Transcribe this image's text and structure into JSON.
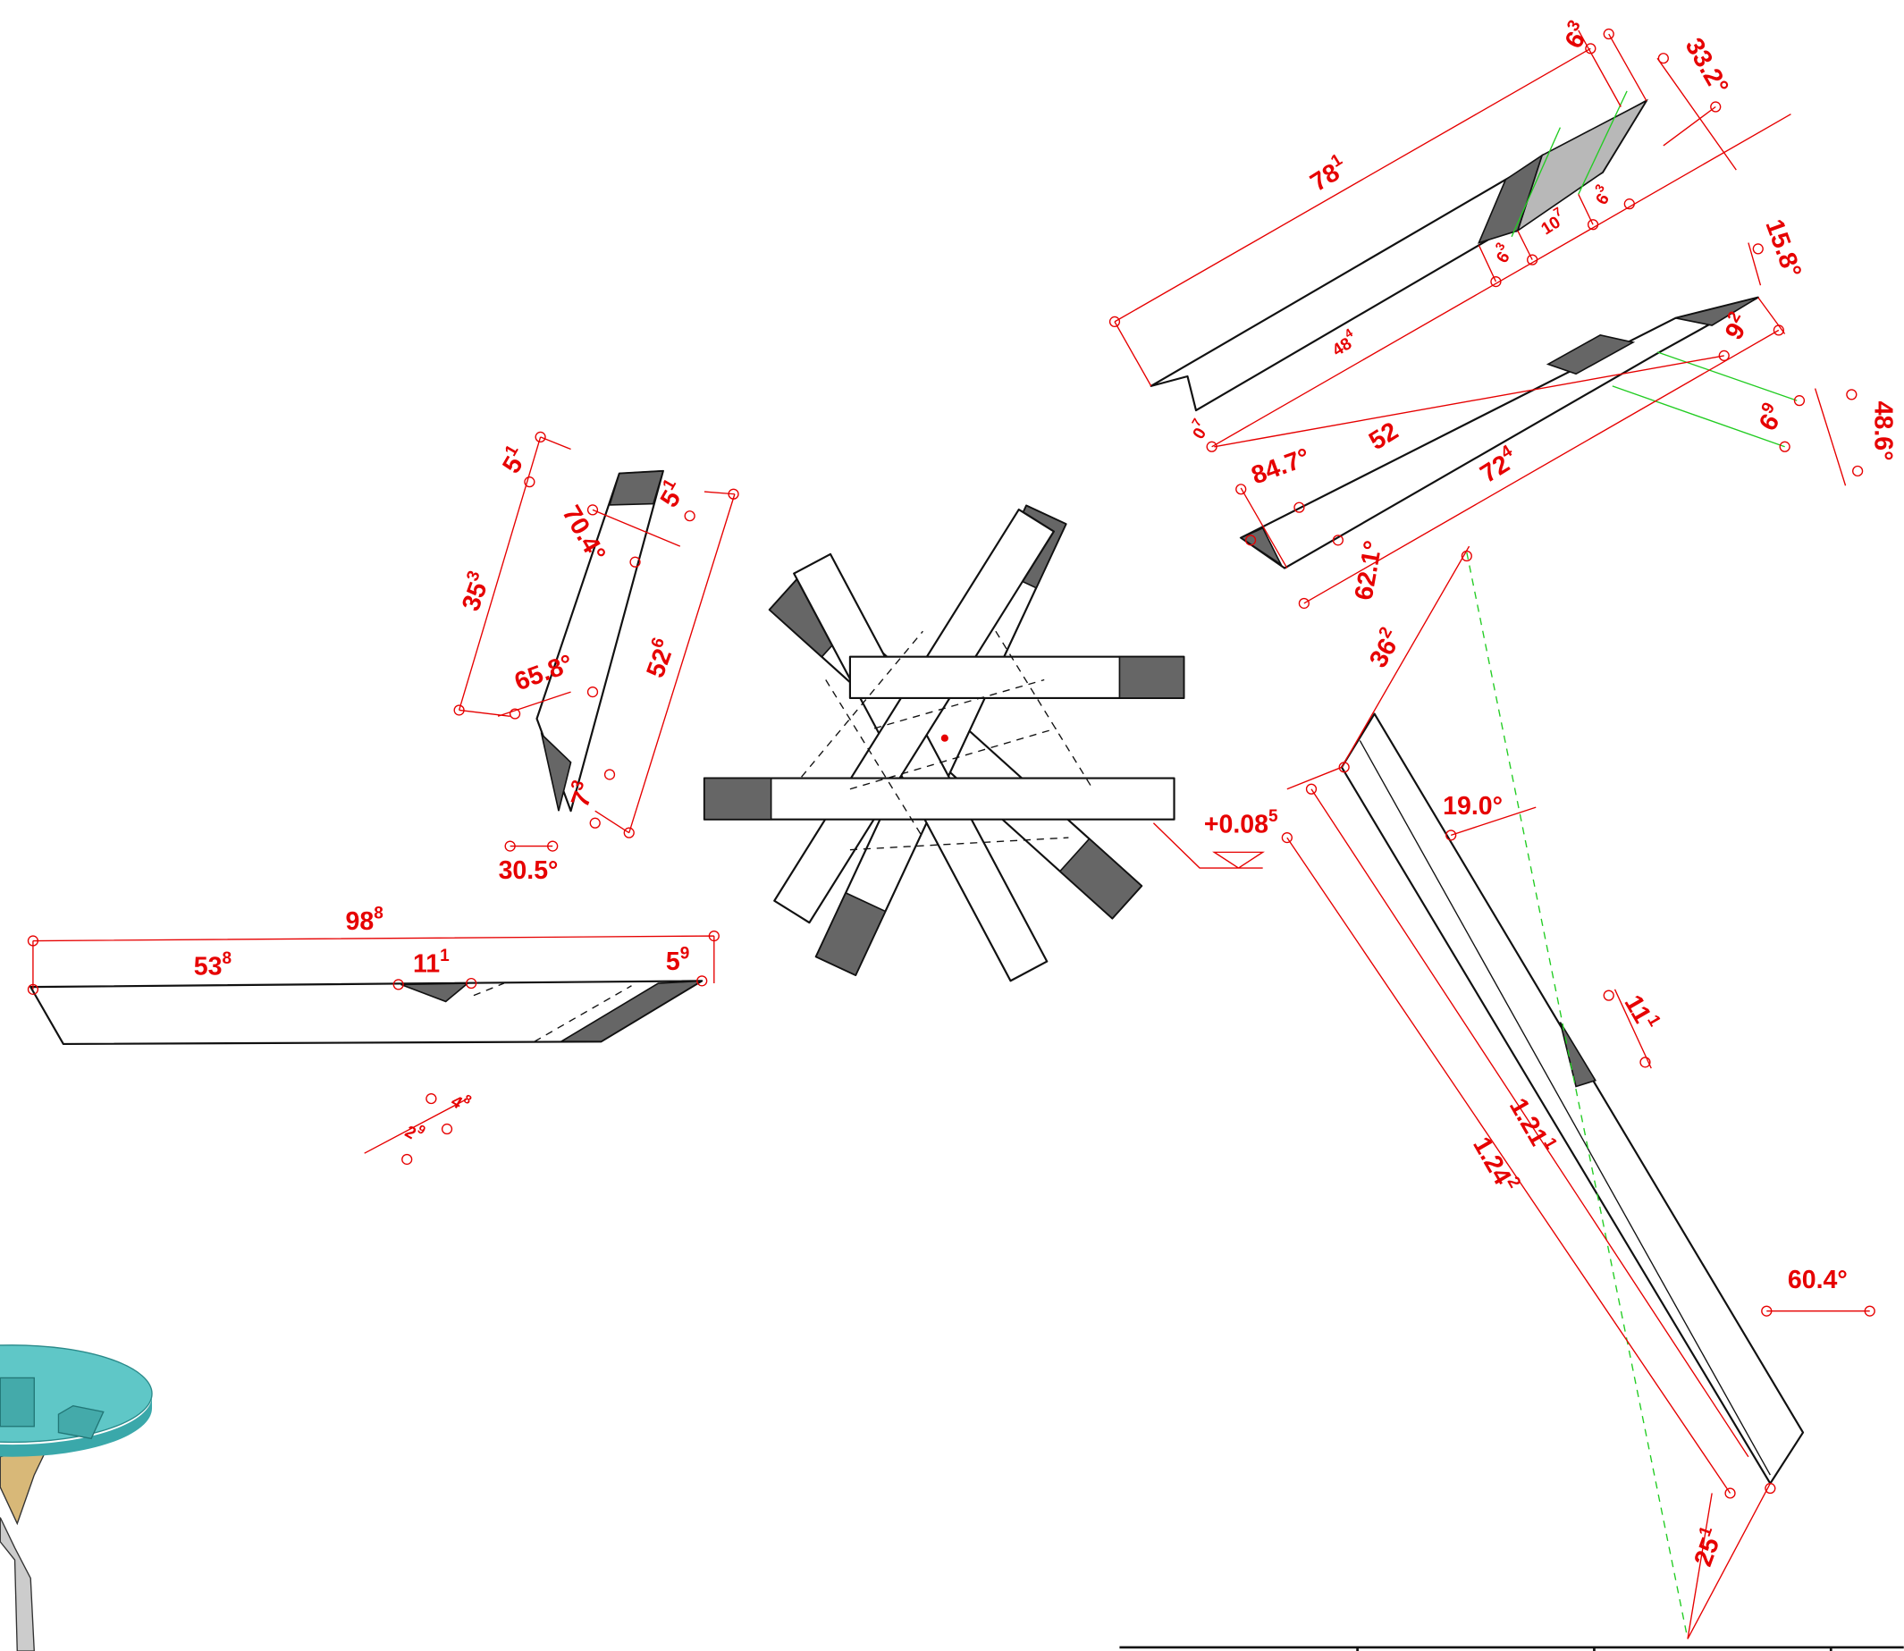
{
  "labels": [
    {
      "text": "6",
      "sup": "3"
    },
    {
      "text": "33.2°"
    },
    {
      "text": "78",
      "sup": "1"
    },
    {
      "text": "10",
      "sup": "7"
    },
    {
      "text": "6",
      "sup": "3"
    },
    {
      "text": "6",
      "sup": "3"
    },
    {
      "text": "48",
      "sup": "4"
    },
    {
      "text": "15.8°"
    },
    {
      "text": "9",
      "sup": "2"
    },
    {
      "text": "52"
    },
    {
      "text": "6",
      "sup": "9"
    },
    {
      "text": "48.6°"
    },
    {
      "text": "84.7°"
    },
    {
      "text": "72",
      "sup": "4"
    },
    {
      "text": "0",
      "sup": "7"
    },
    {
      "text": "62.1°"
    },
    {
      "text": "5",
      "sup": "1"
    },
    {
      "text": "5",
      "sup": "1"
    },
    {
      "text": "70.4°"
    },
    {
      "text": "35",
      "sup": "3"
    },
    {
      "text": "52",
      "sup": "6"
    },
    {
      "text": "65.8°"
    },
    {
      "text": "7",
      "sup": "3"
    },
    {
      "text": "30.5°"
    },
    {
      "text": "98",
      "sup": "8"
    },
    {
      "text": "53",
      "sup": "8"
    },
    {
      "text": "11",
      "sup": "1"
    },
    {
      "text": "5",
      "sup": "9"
    },
    {
      "text": "4",
      "sup": "8"
    },
    {
      "text": "2",
      "sup": "9"
    },
    {
      "text": "+0.08",
      "sup": "5"
    },
    {
      "text": "36",
      "sup": "2"
    },
    {
      "text": "19.0°"
    },
    {
      "text": "11",
      "sup": "1"
    },
    {
      "text": "1.21",
      "sup": "1"
    },
    {
      "text": "1.24",
      "sup": "2"
    },
    {
      "text": "60.4°"
    },
    {
      "text": "25",
      "sup": "1"
    }
  ]
}
